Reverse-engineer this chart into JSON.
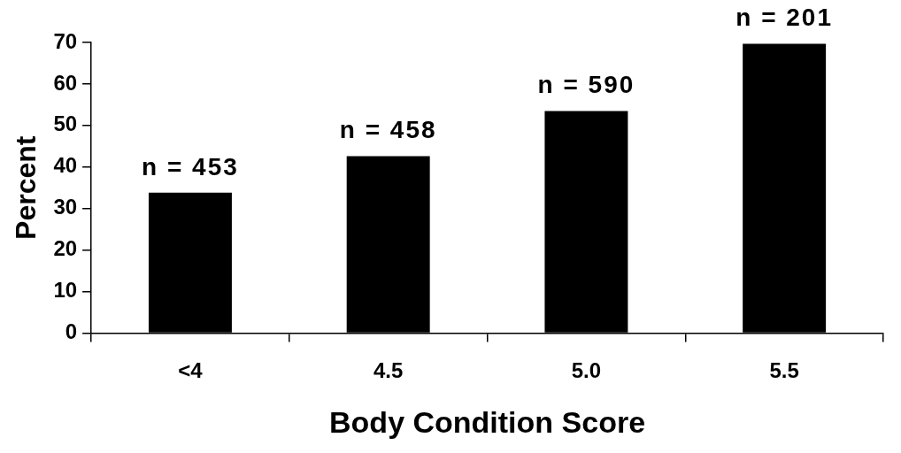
{
  "chart_data": {
    "type": "bar",
    "xlabel": "Body Condition Score",
    "ylabel": "Percent",
    "categories": [
      "<4",
      "4.5",
      "5.0",
      "5.5"
    ],
    "values": [
      33.8,
      42.6,
      53.5,
      69.7
    ],
    "color": "#000000",
    "ylim": [
      0,
      70
    ],
    "yticks": [
      0,
      10,
      20,
      30,
      40,
      50,
      60,
      70
    ],
    "grid": false,
    "legend": false,
    "annotations": [
      {
        "text": "n = 453",
        "x": "<4",
        "y": 33.8
      },
      {
        "text": "n = 458",
        "x": "4.5",
        "y": 42.6
      },
      {
        "text": "n = 590",
        "x": "5.0",
        "y": 53.5
      },
      {
        "text": "n = 201",
        "x": "5.5",
        "y": 69.7
      }
    ]
  }
}
